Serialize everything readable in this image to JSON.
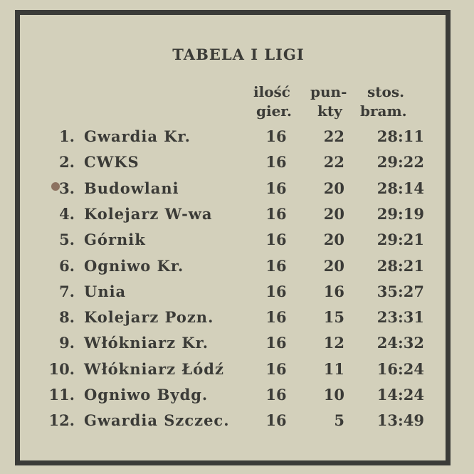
{
  "title": "TABELA I LIGI",
  "headers": {
    "games_line1": "ilość",
    "games_line2": "gier.",
    "points_line1": "pun-",
    "points_line2": "kty",
    "goals_line1": "stos.",
    "goals_line2": "bram."
  },
  "rows": [
    {
      "pos": "1.",
      "team": "Gwardia Kr.",
      "games": "16",
      "points": "22",
      "goals": "28:11"
    },
    {
      "pos": "2.",
      "team": "CWKS",
      "games": "16",
      "points": "22",
      "goals": "29:22"
    },
    {
      "pos": "3.",
      "team": "Budowlani",
      "games": "16",
      "points": "20",
      "goals": "28:14"
    },
    {
      "pos": "4.",
      "team": "Kolejarz W-wa",
      "games": "16",
      "points": "20",
      "goals": "29:19"
    },
    {
      "pos": "5.",
      "team": "Górnik",
      "games": "16",
      "points": "20",
      "goals": "29:21"
    },
    {
      "pos": "6.",
      "team": "Ogniwo Kr.",
      "games": "16",
      "points": "20",
      "goals": "28:21"
    },
    {
      "pos": "7.",
      "team": "Unia",
      "games": "16",
      "points": "16",
      "goals": "35:27"
    },
    {
      "pos": "8.",
      "team": "Kolejarz Pozn.",
      "games": "16",
      "points": "15",
      "goals": "23:31"
    },
    {
      "pos": "9.",
      "team": "Włókniarz Kr.",
      "games": "16",
      "points": "12",
      "goals": "24:32"
    },
    {
      "pos": "10.",
      "team": "Włókniarz Łódź",
      "games": "16",
      "points": "11",
      "goals": "16:24"
    },
    {
      "pos": "11.",
      "team": "Ogniwo Bydg.",
      "games": "16",
      "points": "10",
      "goals": "14:24"
    },
    {
      "pos": "12.",
      "team": "Gwardia Szczec.",
      "games": "16",
      "points": "5",
      "goals": "13:49"
    }
  ]
}
